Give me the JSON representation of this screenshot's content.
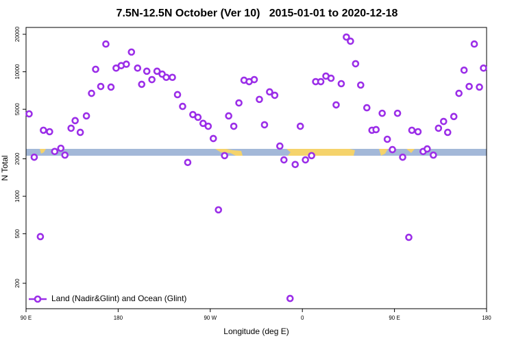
{
  "chart_data": {
    "type": "scatter",
    "title": "7.5N-12.5N October (Ver 10)   2015-01-01 to 2020-12-18",
    "xlabel": "Longitude (deg E)",
    "ylabel": "N Total",
    "log_y": true,
    "xlim": [
      90,
      540
    ],
    "ylim": [
      125,
      22700
    ],
    "xticks": [
      {
        "value": 90,
        "label": "90 E"
      },
      180,
      {
        "value": 270,
        "label": "90 W"
      },
      {
        "value": 360,
        "label": "0"
      },
      {
        "value": 450,
        "label": "90 E"
      },
      {
        "value": 540,
        "label": "180"
      }
    ],
    "yticks": [
      200,
      500,
      1000,
      2000,
      5000,
      10000,
      20000
    ],
    "legend": "lower left",
    "series": [
      {
        "name": "Land (Nadir&Glint) and Ocean (Glint)",
        "color": "#9b2ee8",
        "x": [
          93,
          98,
          104,
          107,
          113,
          118,
          124,
          128,
          134,
          138,
          143,
          149,
          154,
          158,
          163,
          168,
          173,
          178,
          183,
          188,
          193,
          199,
          203,
          208,
          213,
          218,
          223,
          227,
          233,
          238,
          243,
          248,
          253,
          258,
          263,
          268,
          273,
          278,
          284,
          288,
          293,
          298,
          303,
          308,
          313,
          318,
          323,
          328,
          333,
          338,
          342,
          348,
          353,
          358,
          363,
          369,
          373,
          378,
          383,
          388,
          393,
          398,
          403,
          407,
          412,
          417,
          423,
          428,
          432,
          438,
          443,
          448,
          453,
          458,
          464,
          467,
          473,
          478,
          482,
          488,
          493,
          498,
          502,
          508,
          513,
          518,
          523,
          528,
          533,
          537
        ],
        "values": [
          4590,
          2060,
          474,
          3390,
          3300,
          2290,
          2430,
          2140,
          3520,
          4050,
          3260,
          4420,
          6710,
          10470,
          7620,
          16700,
          7530,
          10700,
          11200,
          11500,
          14400,
          10700,
          7930,
          10100,
          8650,
          10100,
          9570,
          9020,
          9020,
          6550,
          5270,
          1870,
          4530,
          4310,
          3850,
          3650,
          2910,
          778,
          2120,
          4420,
          3650,
          5620,
          8550,
          8330,
          8650,
          6000,
          3750,
          6890,
          6470,
          2530,
          1960,
          151,
          1800,
          3650,
          1960,
          2120,
          8330,
          8330,
          9230,
          8870,
          5420,
          8020,
          19000,
          17600,
          11600,
          7820,
          5140,
          3390,
          3430,
          4640,
          2870,
          2370,
          4640,
          2060,
          468,
          3390,
          3300,
          2290,
          2400,
          2140,
          3520,
          3990,
          3260,
          4370,
          6710,
          10300,
          7620,
          16700,
          7530,
          10700
        ]
      }
    ]
  }
}
